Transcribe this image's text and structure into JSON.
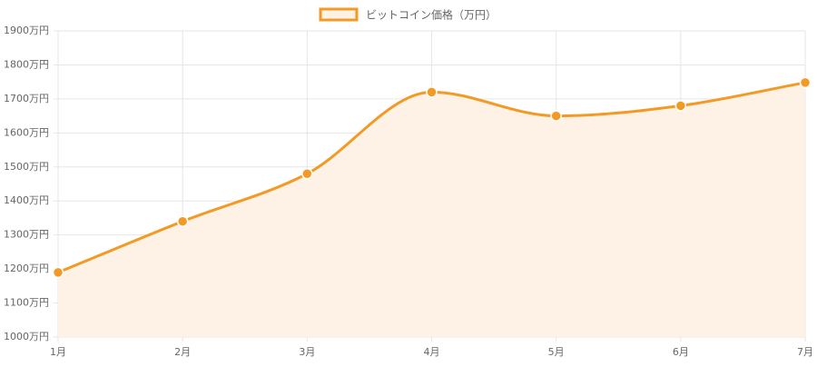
{
  "chart_data": {
    "type": "line",
    "categories": [
      "1月",
      "2月",
      "3月",
      "4月",
      "5月",
      "6月",
      "7月"
    ],
    "series": [
      {
        "name": "ビットコイン価格（万円）",
        "values": [
          1190,
          1340,
          1480,
          1720,
          1650,
          1680,
          1748
        ],
        "color": "#f39a26",
        "fill": "#fdf2e5",
        "smooth": true,
        "area": true
      }
    ],
    "y_tick_labels": [
      "1000万円",
      "1100万円",
      "1200万円",
      "1300万円",
      "1400万円",
      "1500万円",
      "1600万円",
      "1700万円",
      "1800万円",
      "1900万円"
    ],
    "y_ticks": [
      1000,
      1100,
      1200,
      1300,
      1400,
      1500,
      1600,
      1700,
      1800,
      1900
    ],
    "ylim": [
      1000,
      1900
    ],
    "grid": true,
    "legend_position": "top",
    "grid_color": "#e6e6e6",
    "axis_text_color": "#666666"
  }
}
